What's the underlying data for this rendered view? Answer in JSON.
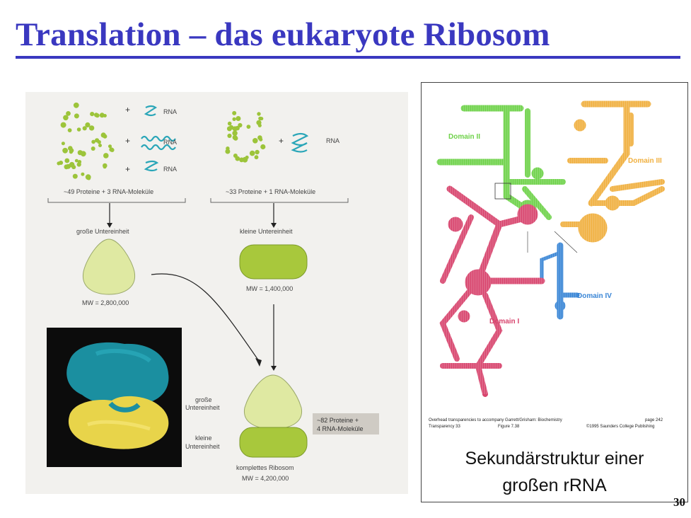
{
  "slide": {
    "title": "Translation – das eukaryote Ribosom",
    "page_number": "30"
  },
  "left_figure": {
    "rna_label": "RNA",
    "large_group_caption": "~49 Proteine + 3 RNA-Moleküle",
    "small_group_caption": "~33 Proteine + 1 RNA-Moleküle",
    "large_subunit_label": "große Untereinheit",
    "small_subunit_label": "kleine Untereinheit",
    "large_mw": "MW = 2,800,000",
    "small_mw": "MW = 1,400,000",
    "assembled_large_line1": "große",
    "assembled_large_line2": "Untereinheit",
    "assembled_small_line1": "kleine",
    "assembled_small_line2": "Untereinheit",
    "combined_line1": "~82 Proteine +",
    "combined_line2": "4 RNA-Moleküle",
    "complete_label": "komplettes Ribosom",
    "complete_mw": "MW = 4,200,000"
  },
  "right_figure": {
    "domains": [
      {
        "name": "Domain I",
        "color": "#d8456e"
      },
      {
        "name": "Domain II",
        "color": "#6fd24a"
      },
      {
        "name": "Domain III",
        "color": "#f0b040"
      },
      {
        "name": "Domain IV",
        "color": "#3a86d6"
      }
    ],
    "credit_line1": "Overhead transparencies to accompany Garrett/Grisham: Biochemistry",
    "credit_page": "page 242",
    "credit_line2a": "Transparency 33",
    "credit_line2b": "Figure 7.38",
    "credit_copyright": "©1995 Saunders College Publishing",
    "caption_line1": "Sekundärstruktur einer",
    "caption_line2": "großen rRNA"
  },
  "colors": {
    "title": "#3a38c0",
    "protein": "#9cc43a",
    "rna": "#2aa6b8",
    "large_subunit": "#dfe9a2",
    "small_subunit": "#a8c83c",
    "model_teal": "#1b8fa0",
    "model_yellow": "#e8d44a"
  }
}
